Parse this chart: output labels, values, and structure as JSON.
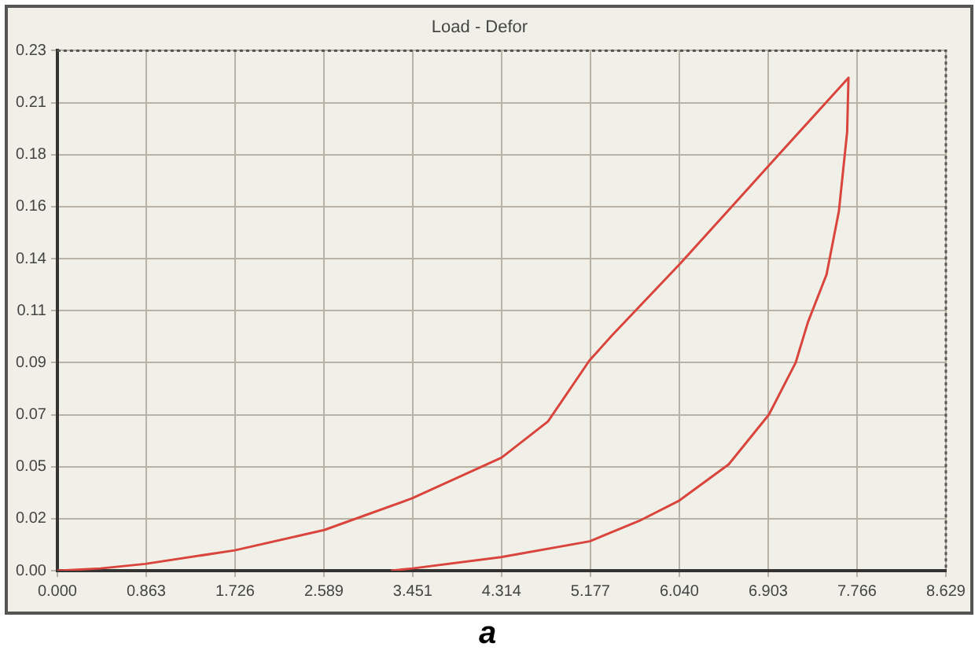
{
  "chart_data": {
    "type": "line",
    "title": "Load - Defor",
    "annotations": [
      "a"
    ],
    "series": [
      {
        "color": "#d9453c",
        "x": [
          0,
          0.42,
          0.854,
          1.723,
          2.592,
          3.446,
          4.315,
          4.765,
          5.168,
          5.386,
          6.053,
          6.907,
          7.683,
          7.67,
          7.59,
          7.47,
          7.29,
          7.17,
          6.91,
          6.52,
          6.04,
          5.65,
          5.17,
          4.31,
          3.45,
          3.24
        ],
        "values": [
          0,
          0.001,
          0.003,
          0.009,
          0.018,
          0.032,
          0.05,
          0.066,
          0.093,
          0.104,
          0.136,
          0.179,
          0.218,
          0.194,
          0.159,
          0.131,
          0.11,
          0.092,
          0.069,
          0.047,
          0.031,
          0.022,
          0.013,
          0.006,
          0.001,
          0
        ]
      }
    ],
    "xlim": [
      0,
      8.629
    ],
    "xticks": [
      {
        "value": 0,
        "label": "0.000"
      },
      0.863,
      1.726,
      2.589,
      3.451,
      4.314,
      5.177,
      {
        "value": 6.04,
        "label": "6.040"
      },
      6.903,
      7.766,
      8.629
    ],
    "ylim": [
      0,
      0.23
    ],
    "yticks": [
      {
        "value": 0,
        "label": "0.00"
      },
      {
        "value": 0.023,
        "label": "0.02"
      },
      {
        "value": 0.046,
        "label": "0.05"
      },
      {
        "value": 0.069,
        "label": "0.07"
      },
      {
        "value": 0.092,
        "label": "0.09"
      },
      {
        "value": 0.115,
        "label": "0.11"
      },
      {
        "value": 0.138,
        "label": "0.14"
      },
      {
        "value": 0.161,
        "label": "0.16"
      },
      {
        "value": 0.184,
        "label": "0.18"
      },
      {
        "value": 0.207,
        "label": "0.21"
      },
      {
        "value": 0.23,
        "label": "0.23"
      }
    ],
    "grid": true,
    "legend": false,
    "marker": "none",
    "line_style": "solid"
  }
}
